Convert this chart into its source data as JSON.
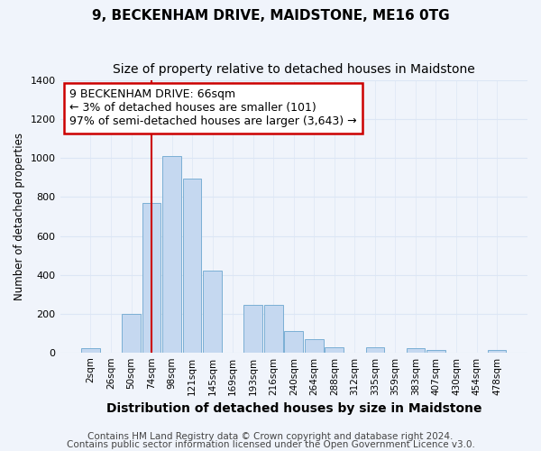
{
  "title": "9, BECKENHAM DRIVE, MAIDSTONE, ME16 0TG",
  "subtitle": "Size of property relative to detached houses in Maidstone",
  "xlabel": "Distribution of detached houses by size in Maidstone",
  "ylabel": "Number of detached properties",
  "bar_labels": [
    "2sqm",
    "26sqm",
    "50sqm",
    "74sqm",
    "98sqm",
    "121sqm",
    "145sqm",
    "169sqm",
    "193sqm",
    "216sqm",
    "240sqm",
    "264sqm",
    "288sqm",
    "312sqm",
    "335sqm",
    "359sqm",
    "383sqm",
    "407sqm",
    "430sqm",
    "454sqm",
    "478sqm"
  ],
  "bar_values": [
    20,
    0,
    200,
    770,
    1010,
    895,
    420,
    0,
    245,
    245,
    110,
    70,
    25,
    0,
    25,
    0,
    20,
    12,
    0,
    0,
    12
  ],
  "bar_color": "#c5d8f0",
  "bar_edge_color": "#7bafd4",
  "vline_color": "#cc0000",
  "vline_pos": 3,
  "annotation_line1": "9 BECKENHAM DRIVE: 66sqm",
  "annotation_line2": "← 3% of detached houses are smaller (101)",
  "annotation_line3": "97% of semi-detached houses are larger (3,643) →",
  "annot_box_facecolor": "#ffffff",
  "annot_box_edgecolor": "#cc0000",
  "ylim_max": 1400,
  "yticks": [
    0,
    200,
    400,
    600,
    800,
    1000,
    1200,
    1400
  ],
  "footer_line1": "Contains HM Land Registry data © Crown copyright and database right 2024.",
  "footer_line2": "Contains public sector information licensed under the Open Government Licence v3.0.",
  "bg_color": "#f0f4fb",
  "grid_color": "#dce6f5",
  "title_fontsize": 11,
  "subtitle_fontsize": 10,
  "xlabel_fontsize": 10,
  "ylabel_fontsize": 8.5,
  "tick_fontsize": 7.5,
  "footer_fontsize": 7.5,
  "annot_fontsize": 9
}
